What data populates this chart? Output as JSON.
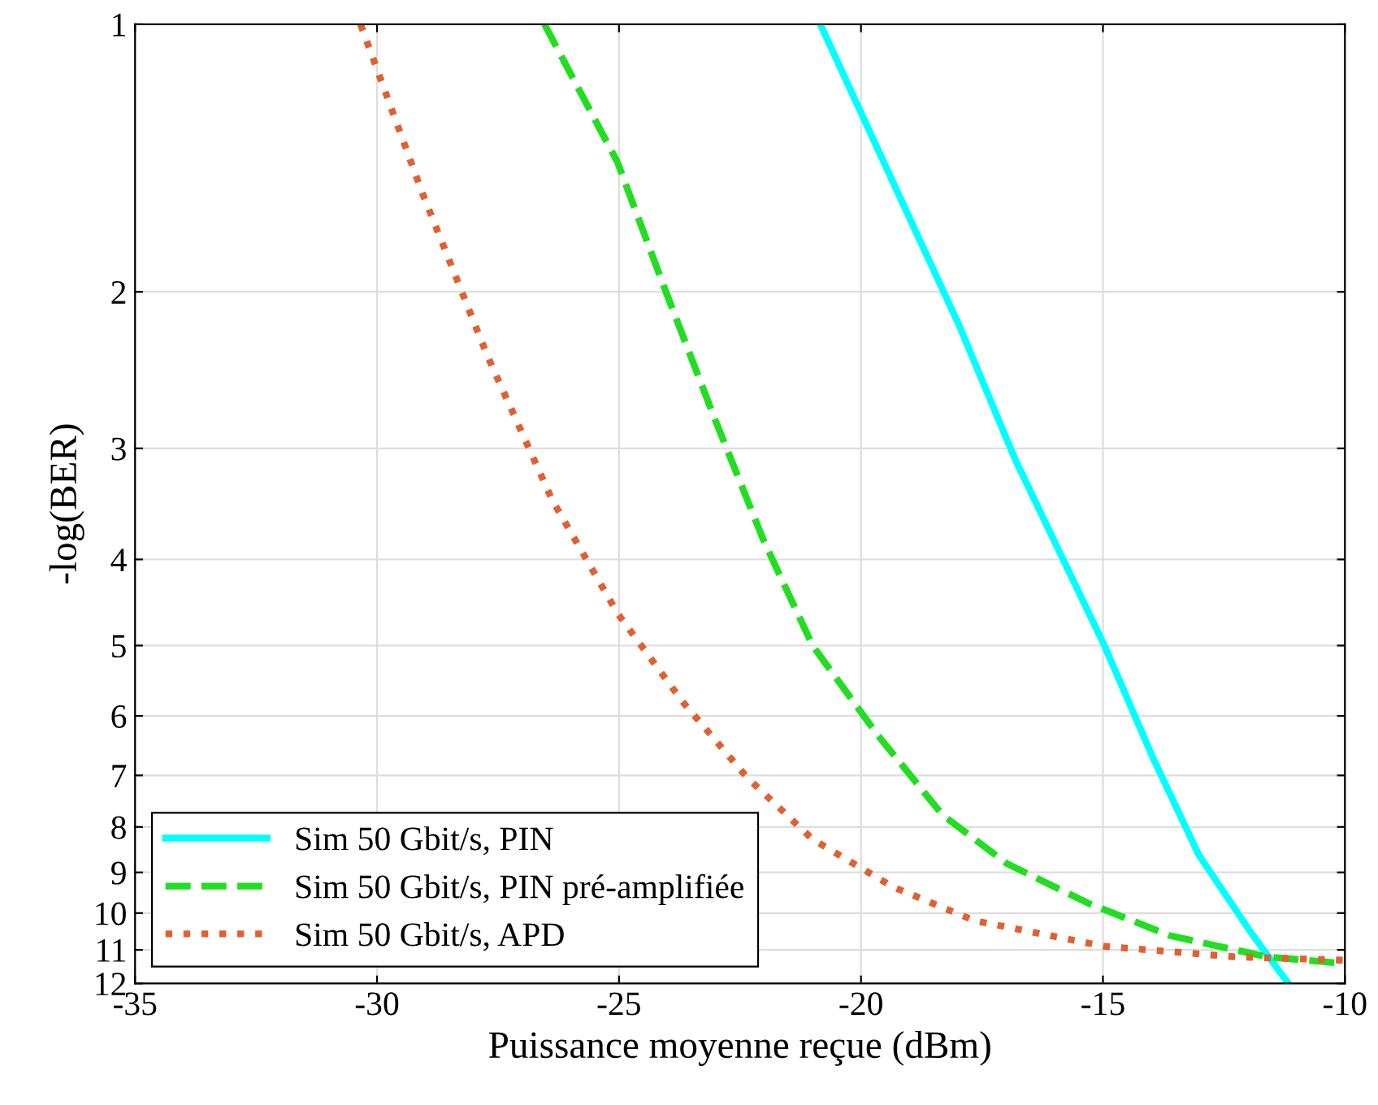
{
  "chart_data": {
    "type": "line",
    "xlabel": "Puissance moyenne reçue (dBm)",
    "ylabel": "-log(BER)",
    "log": "y",
    "grid": true,
    "legend": "bottom left",
    "xlim": [
      -35,
      -10
    ],
    "xticks": [
      -35,
      -30,
      -25,
      -20,
      -15,
      -10
    ],
    "ylim": [
      12,
      1
    ],
    "yticks": [
      1,
      2,
      3,
      4,
      5,
      6,
      7,
      8,
      9,
      10,
      11,
      12
    ],
    "series": [
      {
        "name": "Sim 50 Gbit/s, PIN",
        "color": "#00ffff",
        "line_style": "solid",
        "x": [
          -20.84,
          -19.16,
          -17.99,
          -16.81,
          -14.97,
          -13.96,
          -13.02,
          -11.95,
          -11.17
        ],
        "values": [
          1,
          1.58,
          2.17,
          3.09,
          5.0,
          6.7,
          8.6,
          10.5,
          12
        ]
      },
      {
        "name": "Sim 50 Gbit/s, PIN pré-amplifiée",
        "color": "#22dd22",
        "line_style": "dashed",
        "x": [
          -26.54,
          -25.03,
          -24.03,
          -23.02,
          -22.01,
          -21.0,
          -19.66,
          -18.32,
          -16.98,
          -15.3,
          -13.62,
          -11.61,
          -10
        ],
        "values": [
          1,
          1.43,
          2.0,
          2.78,
          3.81,
          5.0,
          6.3,
          7.75,
          8.8,
          9.75,
          10.6,
          11.2,
          11.4
        ]
      },
      {
        "name": "Sim 50 Gbit/s, APD",
        "color": "#e06030",
        "line_style": "dotted",
        "x": [
          -30.34,
          -29.06,
          -27.72,
          -26.38,
          -25.03,
          -23.69,
          -22.35,
          -21.0,
          -19.33,
          -17.65,
          -14.97,
          -12.28,
          -10
        ],
        "values": [
          1,
          1.55,
          2.36,
          3.43,
          4.6,
          5.78,
          7.04,
          8.26,
          9.35,
          10.2,
          10.9,
          11.2,
          11.3
        ]
      }
    ]
  }
}
